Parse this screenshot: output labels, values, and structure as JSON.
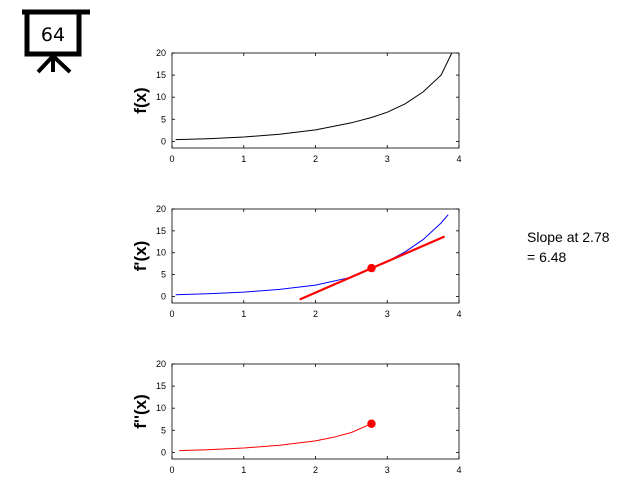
{
  "badge": {
    "number": "64"
  },
  "annotation": {
    "line1": "Slope at 2.78",
    "line2": "= 6.48"
  },
  "chart_data": [
    {
      "type": "line",
      "ylabel": "f(x)",
      "xlim": [
        0,
        4
      ],
      "ylim": [
        -1.5,
        20
      ],
      "xticks": [
        "0",
        "1",
        "2",
        "3",
        "4"
      ],
      "yticks": [
        "0",
        "5",
        "10",
        "15",
        "20"
      ],
      "series": [
        {
          "color": "#000000",
          "x": [
            0.05,
            0.5,
            1.0,
            1.5,
            2.0,
            2.5,
            2.78,
            3.0,
            3.25,
            3.5,
            3.75,
            3.9
          ],
          "y": [
            0.4,
            0.6,
            1.0,
            1.6,
            2.6,
            4.2,
            5.4,
            6.6,
            8.5,
            11.2,
            15.0,
            20.0
          ]
        }
      ]
    },
    {
      "type": "line",
      "ylabel": "f'(x)",
      "xlim": [
        0,
        4
      ],
      "ylim": [
        -1.5,
        20
      ],
      "xticks": [
        "0",
        "1",
        "2",
        "3",
        "4"
      ],
      "yticks": [
        "0",
        "5",
        "10",
        "15",
        "20"
      ],
      "series": [
        {
          "color": "#0000ff",
          "x": [
            0.05,
            0.5,
            1.0,
            1.5,
            2.0,
            2.5,
            2.78,
            3.0,
            3.25,
            3.5,
            3.75,
            3.85
          ],
          "y": [
            0.4,
            0.6,
            1.0,
            1.6,
            2.6,
            4.4,
            6.48,
            8.0,
            10.2,
            13.0,
            16.8,
            18.7
          ]
        },
        {
          "color": "#ff0000",
          "x": [
            1.78,
            3.8
          ],
          "y": [
            -0.7,
            13.7
          ]
        }
      ],
      "point": {
        "x": 2.78,
        "y": 6.48,
        "color": "#ff0000"
      }
    },
    {
      "type": "line",
      "ylabel": "f''(x)",
      "xlim": [
        0,
        4
      ],
      "ylim": [
        -1.5,
        20
      ],
      "xticks": [
        "0",
        "1",
        "2",
        "3",
        "4"
      ],
      "yticks": [
        "0",
        "5",
        "10",
        "15",
        "20"
      ],
      "series": [
        {
          "color": "#ff0000",
          "x": [
            0.1,
            0.5,
            1.0,
            1.5,
            2.0,
            2.25,
            2.5,
            2.78
          ],
          "y": [
            0.4,
            0.6,
            1.0,
            1.6,
            2.6,
            3.4,
            4.5,
            6.48
          ]
        }
      ],
      "point": {
        "x": 2.78,
        "y": 6.48,
        "color": "#ff0000"
      }
    }
  ]
}
